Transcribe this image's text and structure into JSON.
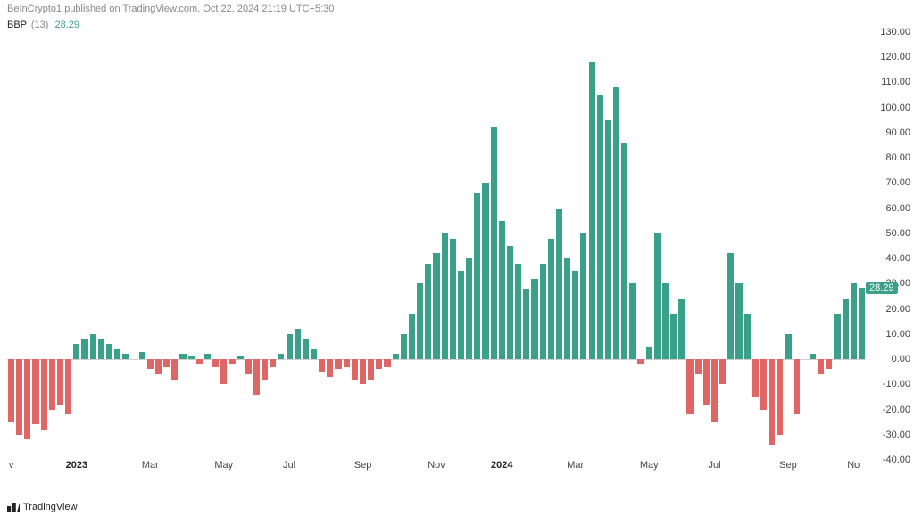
{
  "header": {
    "publish_text": "BeInCrypto1 published on TradingView.com, Oct 22, 2024 21:19 UTC+5:30",
    "indicator_name": "BBP",
    "indicator_param": "(13)",
    "indicator_value": "28.29"
  },
  "chart": {
    "type": "bar",
    "ylim": [
      -40,
      130
    ],
    "ytick_step": 10,
    "yticks": [
      "130.00",
      "120.00",
      "110.00",
      "100.00",
      "90.00",
      "80.00",
      "70.00",
      "60.00",
      "50.00",
      "40.00",
      "30.00",
      "20.00",
      "10.00",
      "0.00",
      "-10.00",
      "-20.00",
      "-30.00",
      "-40.00"
    ],
    "positive_color": "#3ba08a",
    "negative_color": "#e06666",
    "background_color": "#ffffff",
    "grid_color": "#e8e8e8",
    "bar_width_ratio": 0.78,
    "current_value_pill": "28.29",
    "current_value": 28.29,
    "xticks": [
      {
        "idx": 0,
        "label": "v",
        "bold": false
      },
      {
        "idx": 8,
        "label": "2023",
        "bold": true
      },
      {
        "idx": 17,
        "label": "Mar",
        "bold": false
      },
      {
        "idx": 26,
        "label": "May",
        "bold": false
      },
      {
        "idx": 34,
        "label": "Jul",
        "bold": false
      },
      {
        "idx": 43,
        "label": "Sep",
        "bold": false
      },
      {
        "idx": 52,
        "label": "Nov",
        "bold": false
      },
      {
        "idx": 60,
        "label": "2024",
        "bold": true
      },
      {
        "idx": 69,
        "label": "Mar",
        "bold": false
      },
      {
        "idx": 78,
        "label": "May",
        "bold": false
      },
      {
        "idx": 86,
        "label": "Jul",
        "bold": false
      },
      {
        "idx": 95,
        "label": "Sep",
        "bold": false
      },
      {
        "idx": 103,
        "label": "No",
        "bold": false
      }
    ],
    "values": [
      -25,
      -30,
      -32,
      -26,
      -28,
      -20,
      -18,
      -22,
      6,
      8,
      10,
      8,
      6,
      4,
      2,
      0,
      3,
      -4,
      -6,
      -3,
      -8,
      2,
      1,
      -2,
      2,
      -3,
      -10,
      -2,
      1,
      -6,
      -14,
      -8,
      -3,
      2,
      10,
      12,
      8,
      4,
      -5,
      -7,
      -4,
      -3,
      -8,
      -10,
      -8,
      -4,
      -3,
      2,
      10,
      18,
      30,
      38,
      42,
      50,
      48,
      35,
      40,
      66,
      70,
      92,
      55,
      45,
      38,
      28,
      32,
      38,
      48,
      60,
      40,
      35,
      50,
      118,
      105,
      95,
      108,
      86,
      30,
      -2,
      5,
      50,
      30,
      18,
      24,
      -22,
      -6,
      -18,
      -25,
      -10,
      42,
      30,
      18,
      -15,
      -20,
      -34,
      -30,
      10,
      -22,
      0,
      2,
      -6,
      -4,
      18,
      24,
      30,
      28.29
    ]
  },
  "footer": {
    "brand": "TradingView"
  }
}
